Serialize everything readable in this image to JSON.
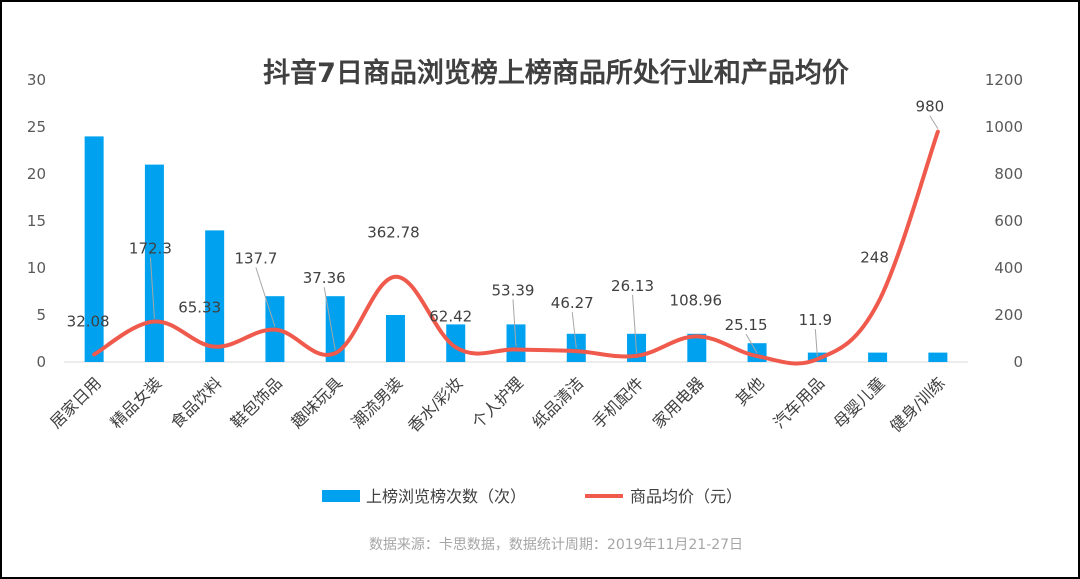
{
  "chart_data": {
    "type": "bar+line",
    "title": "抖音7日商品浏览榜上榜商品所处行业和产品均价",
    "categories": [
      "居家日用",
      "精品女装",
      "食品饮料",
      "鞋包饰品",
      "趣味玩具",
      "潮流男装",
      "香水/彩妆",
      "个人护理",
      "纸品清洁",
      "手机配件",
      "家用电器",
      "其他",
      "汽车用品",
      "母婴儿童",
      "健身/训练"
    ],
    "series": [
      {
        "name": "上榜浏览榜次数（次）",
        "type": "bar",
        "axis": "left",
        "color": "#00a2f0",
        "values": [
          24,
          21,
          14,
          7,
          7,
          5,
          4,
          4,
          3,
          3,
          3,
          2,
          1,
          1,
          1
        ]
      },
      {
        "name": "商品均价（元）",
        "type": "line",
        "axis": "right",
        "color": "#ef5a4c",
        "values": [
          32.08,
          172.3,
          65.33,
          137.7,
          37.36,
          362.78,
          62.42,
          53.39,
          46.27,
          26.13,
          108.96,
          25.15,
          11.9,
          248,
          980
        ],
        "labels": [
          "32.08",
          "172.3",
          "65.33",
          "137.7",
          "37.36",
          "362.78",
          "62.42",
          "53.39",
          "46.27",
          "26.13",
          "108.96",
          "25.15",
          "11.9",
          "248",
          "980"
        ]
      }
    ],
    "y_left": {
      "ylim": [
        0,
        30
      ],
      "ticks": [
        "0",
        "5",
        "10",
        "15",
        "20",
        "25",
        "30"
      ]
    },
    "y_right": {
      "ylim": [
        0,
        1200
      ],
      "ticks": [
        "0",
        "200",
        "400",
        "600",
        "800",
        "1000",
        "1200"
      ]
    },
    "grid": false,
    "legend_position": "bottom",
    "source": "数据来源：卡思数据，数据统计周期：2019年11月21-27日"
  }
}
